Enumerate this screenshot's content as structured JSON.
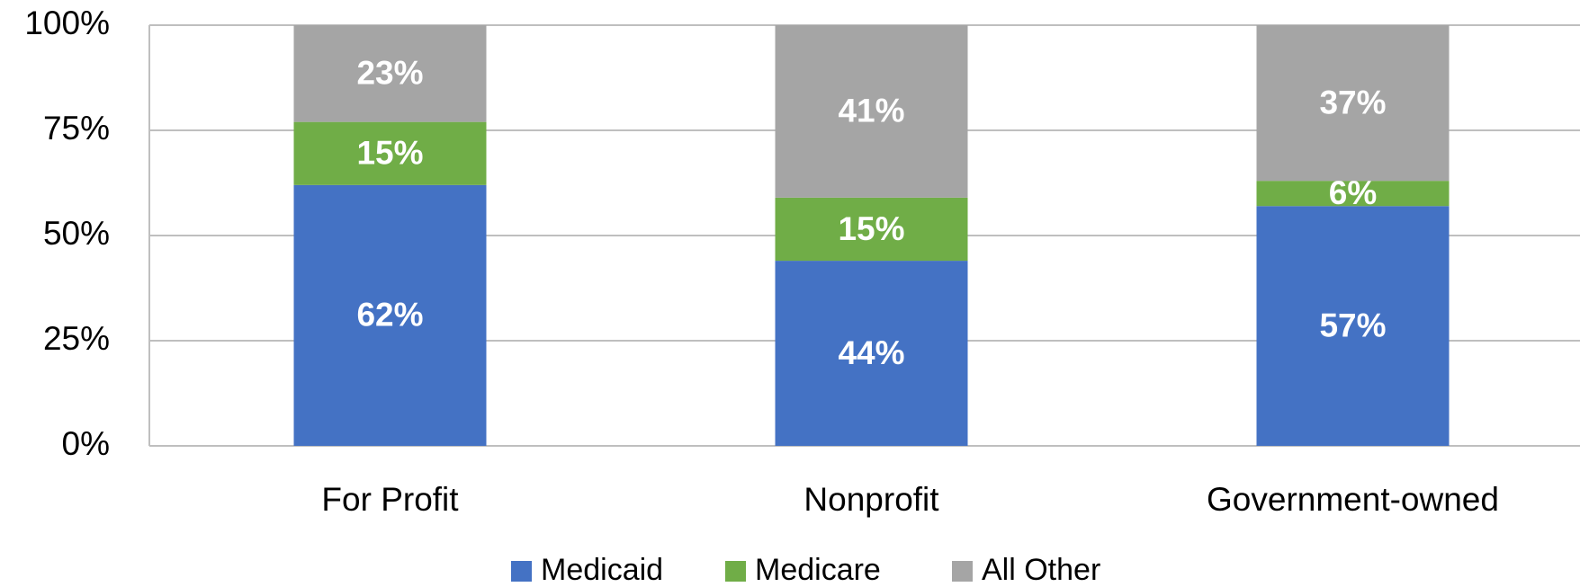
{
  "chart_data": {
    "type": "bar",
    "stacked": true,
    "categories": [
      "For Profit",
      "Nonprofit",
      "Government-owned"
    ],
    "series": [
      {
        "name": "Medicaid",
        "color": "#4472c4",
        "values": [
          62,
          44,
          57
        ],
        "value_labels": [
          "62%",
          "44%",
          "57%"
        ]
      },
      {
        "name": "Medicare",
        "color": "#70ad47",
        "values": [
          15,
          15,
          6
        ],
        "value_labels": [
          "15%",
          "15%",
          "6%"
        ]
      },
      {
        "name": "All Other",
        "color": "#a5a5a5",
        "values": [
          23,
          41,
          37
        ],
        "value_labels": [
          "23%",
          "41%",
          "37%"
        ]
      }
    ],
    "ylim": [
      0,
      100
    ],
    "yticks": [
      {
        "value": 0,
        "label": "0%"
      },
      {
        "value": 25,
        "label": "25%"
      },
      {
        "value": 50,
        "label": "50%"
      },
      {
        "value": 75,
        "label": "75%"
      },
      {
        "value": 100,
        "label": "100%"
      }
    ],
    "grid": true,
    "legend": "bottom"
  }
}
